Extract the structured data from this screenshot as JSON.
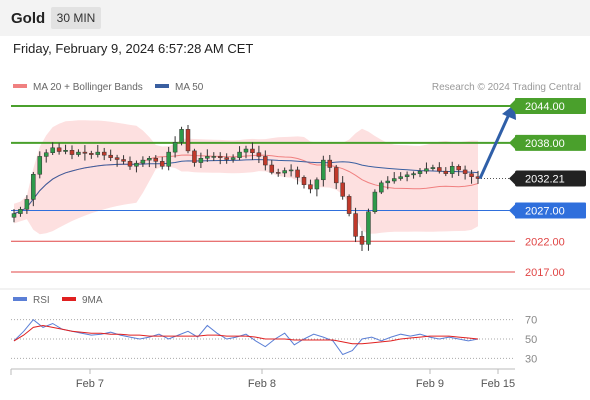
{
  "header": {
    "instrument": "Gold",
    "timeframe": "30 MIN"
  },
  "timestamp": "Friday, February 9, 2024 6:57:28 AM CET",
  "legend": [
    {
      "label": "MA 20 + Bollinger Bands",
      "color": "#f08080"
    },
    {
      "label": "MA 50",
      "color": "#3a5fa0"
    }
  ],
  "credit": "Research © 2024 Trading Central",
  "rsi_legend": [
    {
      "label": "RSI",
      "color": "#5b7fd6"
    },
    {
      "label": "9MA",
      "color": "#e02020"
    }
  ],
  "chart_data": {
    "type": "candlestick",
    "title": "Gold",
    "timeframe": "30 MIN",
    "price_axis": {
      "min": 2014,
      "max": 2047
    },
    "levels": [
      {
        "value": 2044.0,
        "label": "2044.00",
        "kind": "resistance",
        "color": "#4aa02c"
      },
      {
        "value": 2038.0,
        "label": "2038.00",
        "kind": "resistance",
        "color": "#4aa02c"
      },
      {
        "value": 2032.21,
        "label": "2032.21",
        "kind": "last",
        "color": "#333333"
      },
      {
        "value": 2027.0,
        "label": "2027.00",
        "kind": "pivot",
        "color": "#2f6fdc"
      },
      {
        "value": 2022.0,
        "label": "2022.00",
        "kind": "support",
        "color": "#e04545"
      },
      {
        "value": 2017.0,
        "label": "2017.00",
        "kind": "support",
        "color": "#e04545"
      }
    ],
    "x_ticks": [
      "Feb 7",
      "Feb 8",
      "Feb 9",
      "Feb 15"
    ],
    "price_closes": [
      2026.5,
      2027.2,
      2028.8,
      2032.9,
      2035.8,
      2036.4,
      2037.2,
      2036.6,
      2036.8,
      2036.1,
      2036.5,
      2036.3,
      2036.1,
      2036.5,
      2036.0,
      2035.6,
      2035.3,
      2035.0,
      2034.2,
      2034.7,
      2035.2,
      2035.5,
      2035.0,
      2034.2,
      2036.5,
      2038.1,
      2040.2,
      2036.7,
      2034.8,
      2035.5,
      2035.8,
      2035.8,
      2035.6,
      2035.3,
      2035.6,
      2036.5,
      2037.0,
      2036.4,
      2035.8,
      2034.4,
      2033.2,
      2033.1,
      2033.5,
      2033.6,
      2032.4,
      2031.2,
      2030.5,
      2032.0,
      2035.2,
      2034.0,
      2031.5,
      2029.3,
      2026.5,
      2022.8,
      2021.5,
      2026.8,
      2030.0,
      2031.5,
      2031.8,
      2032.2,
      2032.5,
      2032.8,
      2033.0,
      2033.4,
      2033.8,
      2034.0,
      2033.4,
      2033.0,
      2034.2,
      2033.6,
      2033.0,
      2032.5,
      2032.21
    ],
    "rsi": {
      "levels": [
        70,
        50,
        30
      ],
      "range": [
        20,
        80
      ],
      "rsi_values": [
        48,
        58,
        70,
        62,
        66,
        60,
        58,
        56,
        54,
        55,
        57,
        54,
        52,
        50,
        52,
        55,
        50,
        54,
        58,
        52,
        64,
        56,
        50,
        52,
        55,
        48,
        42,
        50,
        56,
        44,
        50,
        55,
        52,
        48,
        34,
        38,
        50,
        52,
        48,
        52,
        55,
        53,
        55,
        52,
        50,
        52,
        50,
        48,
        50
      ],
      "ma9_values": [
        48,
        54,
        62,
        64,
        62,
        60,
        58,
        57,
        56,
        56,
        55,
        55,
        54,
        54,
        53,
        53,
        53,
        53,
        53,
        53,
        54,
        54,
        53,
        53,
        53,
        52,
        50,
        50,
        50,
        49,
        49,
        49,
        49,
        49,
        47,
        45,
        45,
        46,
        47,
        48,
        50,
        51,
        52,
        53,
        53,
        53,
        52,
        51,
        50
      ]
    }
  }
}
